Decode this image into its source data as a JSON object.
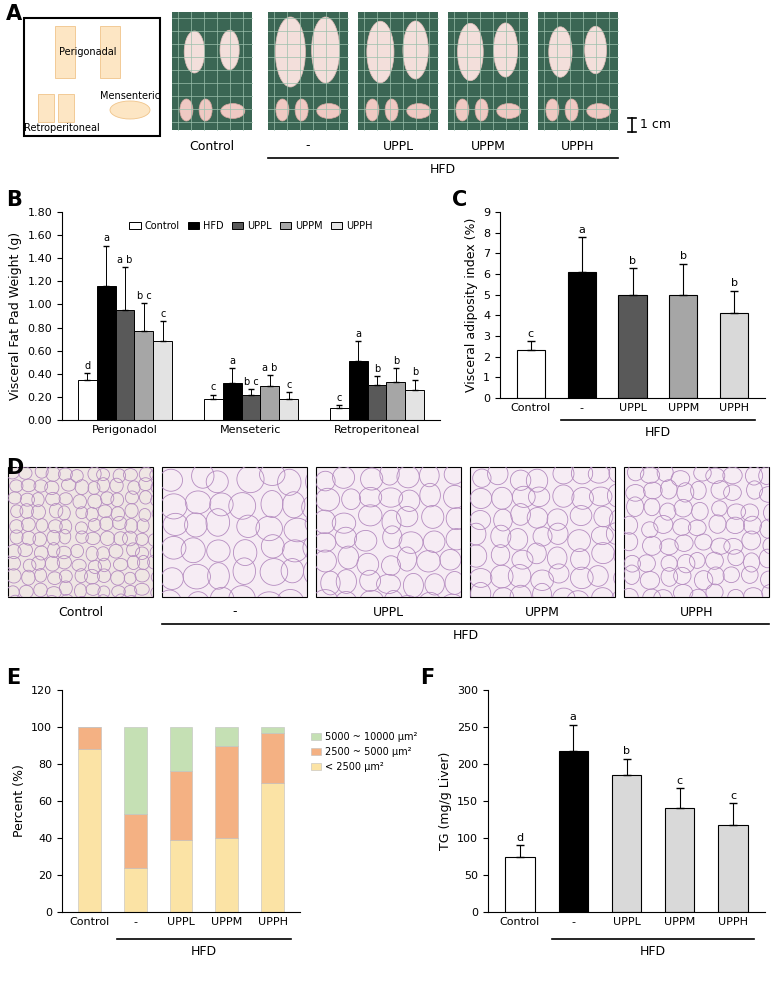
{
  "panel_labels": [
    "A",
    "B",
    "C",
    "D",
    "E",
    "F"
  ],
  "panel_a": {
    "diagram_labels": [
      "Perigonadal",
      "Retroperitoneal",
      "Mensenteric"
    ],
    "image_labels": [
      "Control",
      "-",
      "UPPL",
      "UPPM",
      "UPPH"
    ],
    "group": {
      "label": "HFD",
      "from": "-",
      "to": "UPPH"
    },
    "scale_bar": "1 cm"
  },
  "panel_d": {
    "image_labels": [
      "Control",
      "-",
      "UPPL",
      "UPPM",
      "UPPH"
    ],
    "group": {
      "label": "HFD",
      "from": "-",
      "to": "UPPH"
    }
  },
  "chart_data": [
    {
      "type": "bar",
      "ylabel": "Visceral Fat Pad Weight (g)",
      "categories": [
        "Perigonadol",
        "Menseteric",
        "Retroperitoneal"
      ],
      "series": [
        {
          "name": "Control",
          "color": "#ffffff",
          "values": [
            0.35,
            0.18,
            0.1
          ],
          "errors": [
            0.06,
            0.04,
            0.03
          ],
          "letters": [
            "d",
            "c",
            "c"
          ]
        },
        {
          "name": "HFD",
          "color": "#000000",
          "values": [
            1.16,
            0.32,
            0.51
          ],
          "errors": [
            0.35,
            0.13,
            0.17
          ],
          "letters": [
            "a",
            "a",
            "a"
          ]
        },
        {
          "name": "UPPL",
          "color": "#595959",
          "values": [
            0.95,
            0.22,
            0.3
          ],
          "errors": [
            0.37,
            0.05,
            0.08
          ],
          "letters": [
            "a b",
            "b c",
            "b"
          ]
        },
        {
          "name": "UPPM",
          "color": "#a6a6a6",
          "values": [
            0.77,
            0.29,
            0.33
          ],
          "errors": [
            0.24,
            0.1,
            0.12
          ],
          "letters": [
            "b c",
            "a b",
            "b"
          ]
        },
        {
          "name": "UPPH",
          "color": "#e3e3e3",
          "values": [
            0.68,
            0.18,
            0.26
          ],
          "errors": [
            0.18,
            0.06,
            0.09
          ],
          "letters": [
            "c",
            "c",
            "b"
          ]
        }
      ],
      "ylim": [
        0,
        1.8
      ],
      "yticks": [
        {
          "value": 0,
          "label": "0.00"
        },
        {
          "value": 0.2,
          "label": "0.20"
        },
        {
          "value": 0.4,
          "label": "0.40"
        },
        {
          "value": 0.6,
          "label": "0.60"
        },
        {
          "value": 0.8,
          "label": "0.80"
        },
        {
          "value": 1.0,
          "label": "1.00"
        },
        {
          "value": 1.2,
          "label": "1.20"
        },
        {
          "value": 1.4,
          "label": "1.40"
        },
        {
          "value": 1.6,
          "label": "1.60"
        },
        {
          "value": 1.8,
          "label": "1.80"
        }
      ],
      "legend": "upper center"
    },
    {
      "type": "bar",
      "ylabel": "Visceral adiposity index (%)",
      "categories": [
        "Control",
        "-",
        "UPPL",
        "UPPM",
        "UPPH"
      ],
      "values": [
        2.3,
        6.1,
        5.0,
        5.0,
        4.1
      ],
      "errors": [
        0.45,
        1.7,
        1.3,
        1.5,
        1.1
      ],
      "letters": [
        "c",
        "a",
        "b",
        "b",
        "b"
      ],
      "colors": [
        "#ffffff",
        "#000000",
        "#595959",
        "#a6a6a6",
        "#d9d9d9"
      ],
      "ylim": [
        0,
        9
      ],
      "yticks": [
        0,
        1,
        2,
        3,
        4,
        5,
        6,
        7,
        8,
        9
      ],
      "group": {
        "label": "HFD",
        "from": "-",
        "to": "UPPH"
      }
    },
    {
      "type": "bar",
      "stacked": true,
      "ylabel": "Percent (%)",
      "categories": [
        "Control",
        "-",
        "UPPL",
        "UPPM",
        "UPPH"
      ],
      "series": [
        {
          "name": "< 2500 μm²",
          "color": "#fbe3a5",
          "values": [
            88,
            24,
            39,
            40,
            70
          ]
        },
        {
          "name": "2500 ~ 5000 μm²",
          "color": "#f4b183",
          "values": [
            12,
            29,
            37,
            50,
            27
          ]
        },
        {
          "name": "5000 ~ 10000 μm²",
          "color": "#c5e0b4",
          "values": [
            0,
            47,
            24,
            10,
            3
          ]
        }
      ],
      "ylim": [
        0,
        120
      ],
      "yticks": [
        0,
        20,
        40,
        60,
        80,
        100,
        120
      ],
      "legend": "outside right",
      "group": {
        "label": "HFD",
        "from": "-",
        "to": "UPPH"
      }
    },
    {
      "type": "bar",
      "ylabel": "TG (mg/g Liver)",
      "categories": [
        "Control",
        "-",
        "UPPL",
        "UPPM",
        "UPPH"
      ],
      "values": [
        75,
        218,
        185,
        140,
        117
      ],
      "errors": [
        15,
        35,
        22,
        27,
        30
      ],
      "letters": [
        "d",
        "a",
        "b",
        "c",
        "c"
      ],
      "colors": [
        "#ffffff",
        "#000000",
        "#d9d9d9",
        "#d9d9d9",
        "#d9d9d9"
      ],
      "ylim": [
        0,
        300
      ],
      "yticks": [
        0,
        50,
        100,
        150,
        200,
        250,
        300
      ],
      "group": {
        "label": "HFD",
        "from": "-",
        "to": "UPPH"
      }
    }
  ]
}
